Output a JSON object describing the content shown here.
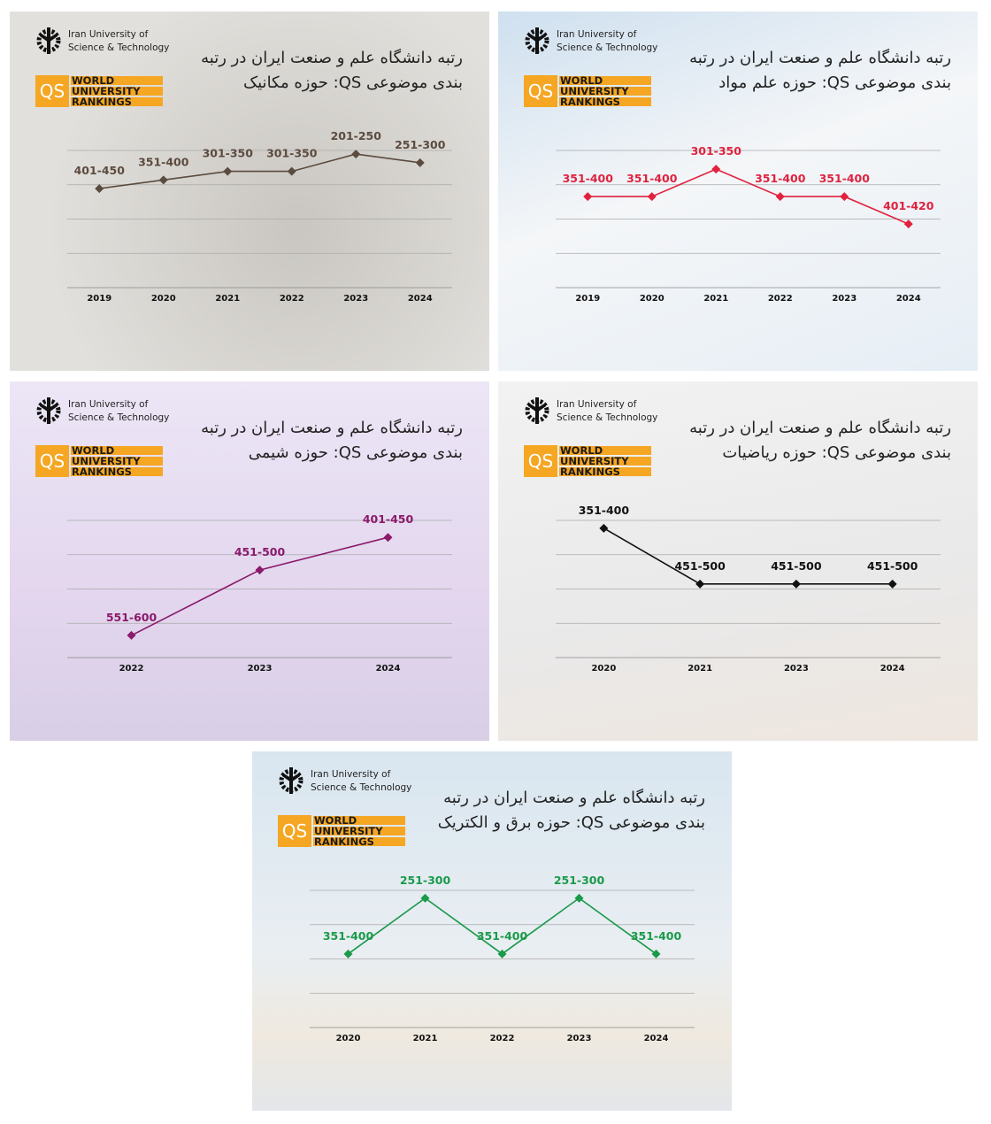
{
  "logo": {
    "university": [
      "Iran University of",
      "Science & Technology"
    ],
    "qs": "QS",
    "rankings": [
      "WORLD",
      "UNIVERSITY",
      "RANKINGS"
    ]
  },
  "chart_data": [
    {
      "type": "line",
      "title": [
        "رتبه دانشگاه علم و صنعت ایران در رتبه",
        "بندی موضوعی QS: حوزه مکانیک"
      ],
      "categories": [
        "2019",
        "2020",
        "2021",
        "2022",
        "2023",
        "2024"
      ],
      "values": [
        401,
        351,
        301,
        301,
        201,
        251
      ],
      "value_labels": [
        "401-450",
        "351-400",
        "301-350",
        "301-350",
        "201-250",
        "251-300"
      ],
      "color": "#5b4b3f",
      "ylim": [
        975,
        180
      ],
      "grid": true
    },
    {
      "type": "line",
      "title": [
        "رتبه دانشگاه علم و صنعت ایران در رتبه",
        "بندی موضوعی QS: حوزه علم مواد"
      ],
      "categories": [
        "2019",
        "2020",
        "2021",
        "2022",
        "2023",
        "2024"
      ],
      "values": [
        351,
        351,
        301,
        351,
        351,
        401
      ],
      "value_labels": [
        "351-400",
        "351-400",
        "301-350",
        "351-400",
        "351-400",
        "401-420"
      ],
      "color": "#e0223f",
      "ylim": [
        517,
        267
      ],
      "grid": true
    },
    {
      "type": "line",
      "title": [
        "رتبه دانشگاه علم و صنعت ایران در رتبه",
        "بندی موضوعی QS: حوزه شیمی"
      ],
      "categories": [
        "2022",
        "2023",
        "2024"
      ],
      "values": [
        551,
        451,
        401
      ],
      "value_labels": [
        "551-600",
        "451-500",
        "401-450"
      ],
      "color": "#8a1a6a",
      "ylim": [
        585,
        375
      ],
      "grid": true
    },
    {
      "type": "line",
      "title": [
        "رتبه دانشگاه علم و صنعت ایران در رتبه",
        "بندی موضوعی QS: حوزه ریاضیات"
      ],
      "categories": [
        "2020",
        "2021",
        "2023",
        "2024"
      ],
      "values": [
        351,
        451,
        451,
        451
      ],
      "value_labels": [
        "351-400",
        "451-500",
        "451-500",
        "451-500"
      ],
      "color": "#111111",
      "ylim": [
        583,
        337
      ],
      "grid": true
    },
    {
      "type": "line",
      "title": [
        "رتبه دانشگاه علم و صنعت ایران در رتبه",
        "بندی موضوعی QS: حوزه برق و الکتریک"
      ],
      "categories": [
        "2020",
        "2021",
        "2022",
        "2023",
        "2024"
      ],
      "values": [
        351,
        251,
        351,
        251,
        351
      ],
      "value_labels": [
        "351-400",
        "251-300",
        "351-400",
        "251-300",
        "351-400"
      ],
      "color": "#1a9a4a",
      "ylim": [
        483,
        237
      ],
      "grid": true
    }
  ]
}
